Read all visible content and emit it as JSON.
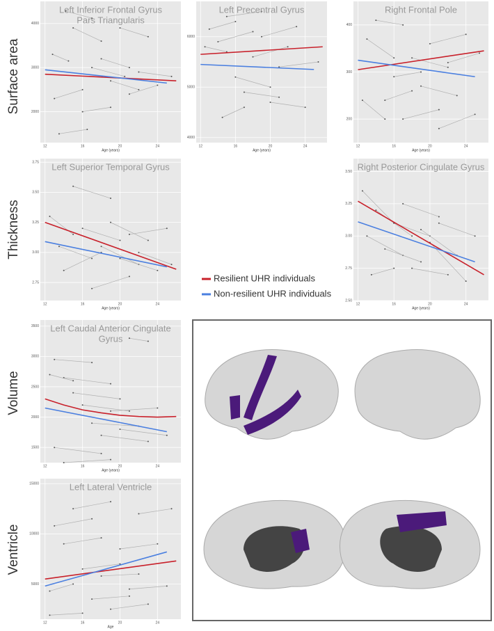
{
  "row_labels": [
    "Surface area",
    "Thickness",
    "Volume",
    "Ventricle"
  ],
  "chart_data": [
    {
      "type": "line",
      "title": [
        "Left Inferior Frontal Gyrus",
        "Pars Triangularis"
      ],
      "x_label": "Age (years)",
      "xlim": [
        11.5,
        26.5
      ],
      "xticks": [
        12,
        16,
        20,
        24
      ],
      "ylim": [
        1300,
        4500
      ],
      "yticks": [
        2000,
        3000,
        4000
      ],
      "grid": true,
      "trajectories": {
        "x": [
          [
            12.8,
            14.5
          ],
          [
            14.2,
            17
          ],
          [
            15,
            18
          ],
          [
            13,
            16
          ],
          [
            16,
            19
          ],
          [
            17,
            20.5
          ],
          [
            19,
            22
          ],
          [
            20,
            23
          ],
          [
            21,
            24
          ],
          [
            22,
            25.5
          ],
          [
            13.5,
            16.5
          ],
          [
            18,
            21
          ]
        ],
        "y": [
          [
            3300,
            3150
          ],
          [
            4280,
            4120
          ],
          [
            3900,
            3600
          ],
          [
            2300,
            2500
          ],
          [
            2000,
            2100
          ],
          [
            3000,
            2800
          ],
          [
            2700,
            2500
          ],
          [
            3900,
            3700
          ],
          [
            2400,
            2600
          ],
          [
            2900,
            2800
          ],
          [
            1500,
            1600
          ],
          [
            3200,
            3000
          ]
        ]
      },
      "series": [
        {
          "name": "Resilient UHR individuals",
          "color": "#c8202a",
          "x": [
            12,
            26
          ],
          "values": [
            2850,
            2700
          ]
        },
        {
          "name": "Non-resilient UHR individuals",
          "color": "#4a7fe0",
          "x": [
            12,
            25
          ],
          "values": [
            2950,
            2650
          ]
        }
      ]
    },
    {
      "type": "line",
      "title": "Left Precentral Gyrus",
      "x_label": "Age (years)",
      "xlim": [
        11.5,
        26.5
      ],
      "xticks": [
        12,
        16,
        20,
        24
      ],
      "ylim": [
        3900,
        6700
      ],
      "yticks": [
        4000,
        5000,
        6000
      ],
      "grid": true,
      "trajectories": {
        "x": [
          [
            13,
            16
          ],
          [
            14,
            18
          ],
          [
            15,
            19
          ],
          [
            16,
            20
          ],
          [
            17,
            21
          ],
          [
            18,
            22
          ],
          [
            19,
            23
          ],
          [
            20,
            24
          ],
          [
            14.5,
            17
          ],
          [
            21,
            25.5
          ],
          [
            12.5,
            15
          ]
        ],
        "y": [
          [
            6150,
            6300
          ],
          [
            5900,
            6100
          ],
          [
            6400,
            6500
          ],
          [
            5200,
            5000
          ],
          [
            4900,
            4800
          ],
          [
            5600,
            5800
          ],
          [
            6000,
            6200
          ],
          [
            4700,
            4600
          ],
          [
            4400,
            4600
          ],
          [
            5400,
            5500
          ],
          [
            5800,
            5700
          ]
        ]
      },
      "series": [
        {
          "name": "Resilient UHR individuals",
          "color": "#c8202a",
          "x": [
            12,
            26
          ],
          "values": [
            5650,
            5800
          ]
        },
        {
          "name": "Non-resilient UHR individuals",
          "color": "#4a7fe0",
          "x": [
            12,
            25
          ],
          "values": [
            5450,
            5350
          ]
        }
      ]
    },
    {
      "type": "line",
      "title": "Right Frontal Pole",
      "x_label": "Age (years)",
      "xlim": [
        11.5,
        26.5
      ],
      "xticks": [
        12,
        16,
        20,
        24
      ],
      "ylim": [
        150,
        450
      ],
      "yticks": [
        200,
        300,
        400
      ],
      "grid": true,
      "trajectories": {
        "x": [
          [
            13,
            16
          ],
          [
            14,
            17
          ],
          [
            15,
            18
          ],
          [
            16,
            19
          ],
          [
            17,
            21
          ],
          [
            18,
            22
          ],
          [
            19,
            23
          ],
          [
            20,
            24
          ],
          [
            12.5,
            15
          ],
          [
            21,
            25
          ],
          [
            22,
            25.5
          ]
        ],
        "y": [
          [
            370,
            330
          ],
          [
            410,
            400
          ],
          [
            240,
            260
          ],
          [
            290,
            300
          ],
          [
            200,
            220
          ],
          [
            330,
            310
          ],
          [
            270,
            250
          ],
          [
            360,
            380
          ],
          [
            240,
            200
          ],
          [
            180,
            210
          ],
          [
            320,
            340
          ]
        ]
      },
      "series": [
        {
          "name": "Resilient UHR individuals",
          "color": "#c8202a",
          "x": [
            12,
            26
          ],
          "values": [
            305,
            345
          ]
        },
        {
          "name": "Non-resilient UHR individuals",
          "color": "#4a7fe0",
          "x": [
            12,
            25
          ],
          "values": [
            325,
            290
          ]
        }
      ]
    },
    {
      "type": "line",
      "title": "Left Superior Temporal Gyrus",
      "x_label": "Age (years)",
      "xlim": [
        11.5,
        26.5
      ],
      "xticks": [
        12,
        16,
        20,
        24
      ],
      "ylim": [
        2.6,
        3.78
      ],
      "yticks": [
        {
          "value": 2.75,
          "label": "2.75"
        },
        {
          "value": 3,
          "label": "3.00"
        },
        {
          "value": 3.25,
          "label": "3.25"
        },
        {
          "value": 3.5,
          "label": "3.50"
        },
        {
          "value": 3.75,
          "label": "3.75"
        }
      ],
      "grid": true,
      "trajectories": {
        "x": [
          [
            12.5,
            15
          ],
          [
            13.5,
            17
          ],
          [
            14,
            18
          ],
          [
            15,
            19
          ],
          [
            16,
            20
          ],
          [
            17,
            21
          ],
          [
            18,
            22
          ],
          [
            19,
            23
          ],
          [
            20,
            24
          ],
          [
            21,
            25
          ],
          [
            22,
            25.5
          ]
        ],
        "y": [
          [
            3.3,
            3.15
          ],
          [
            3.05,
            2.95
          ],
          [
            2.85,
            3.0
          ],
          [
            3.55,
            3.45
          ],
          [
            3.2,
            3.1
          ],
          [
            2.7,
            2.8
          ],
          [
            3.05,
            2.9
          ],
          [
            3.25,
            3.1
          ],
          [
            2.95,
            2.85
          ],
          [
            3.15,
            3.2
          ],
          [
            3.0,
            2.9
          ]
        ]
      },
      "series": [
        {
          "name": "Resilient UHR individuals",
          "color": "#c8202a",
          "x": [
            12,
            26
          ],
          "values": [
            3.25,
            2.86
          ]
        },
        {
          "name": "Non-resilient UHR individuals",
          "color": "#4a7fe0",
          "x": [
            12,
            25
          ],
          "values": [
            3.09,
            2.88
          ]
        }
      ]
    },
    {
      "type": "line",
      "title": "Right Posterior Cingulate Gyrus",
      "x_label": "Age (years)",
      "xlim": [
        11.5,
        26.5
      ],
      "xticks": [
        12,
        16,
        20,
        24
      ],
      "ylim": [
        2.5,
        3.6
      ],
      "yticks": [
        {
          "value": 2.5,
          "label": "2.50"
        },
        {
          "value": 2.75,
          "label": "2.75"
        },
        {
          "value": 3,
          "label": "3.00"
        },
        {
          "value": 3.25,
          "label": "3.25"
        },
        {
          "value": 3.5,
          "label": "3.50"
        }
      ],
      "grid": true,
      "trajectories": {
        "x": [
          [
            12.5,
            16
          ],
          [
            13,
            17
          ],
          [
            14,
            18
          ],
          [
            15,
            19
          ],
          [
            16,
            20
          ],
          [
            17,
            21
          ],
          [
            18,
            22
          ],
          [
            19,
            23
          ],
          [
            20,
            24
          ],
          [
            21,
            25
          ],
          [
            13.5,
            16
          ]
        ],
        "y": [
          [
            3.35,
            3.1
          ],
          [
            3.0,
            2.85
          ],
          [
            3.2,
            3.0
          ],
          [
            2.9,
            2.8
          ],
          [
            3.1,
            3.0
          ],
          [
            3.25,
            3.15
          ],
          [
            2.75,
            2.7
          ],
          [
            3.05,
            2.85
          ],
          [
            2.95,
            2.65
          ],
          [
            3.1,
            3.0
          ],
          [
            2.7,
            2.75
          ]
        ]
      },
      "series": [
        {
          "name": "Resilient UHR individuals",
          "color": "#c8202a",
          "x": [
            12,
            26
          ],
          "values": [
            3.27,
            2.7
          ]
        },
        {
          "name": "Non-resilient UHR individuals",
          "color": "#4a7fe0",
          "x": [
            12,
            25
          ],
          "values": [
            3.11,
            2.8
          ]
        }
      ]
    },
    {
      "type": "line",
      "title": [
        "Left Caudal Anterior Cingulate",
        "Gyrus"
      ],
      "x_label": "Age (years)",
      "xlim": [
        11.5,
        26.5
      ],
      "xticks": [
        12,
        16,
        20,
        24
      ],
      "ylim": [
        1250,
        3600
      ],
      "yticks": [
        1500,
        2000,
        2500,
        3000,
        3500
      ],
      "grid": true,
      "trajectories": {
        "x": [
          [
            13,
            17
          ],
          [
            14,
            19
          ],
          [
            15,
            20
          ],
          [
            16,
            21
          ],
          [
            12.5,
            15
          ],
          [
            17,
            22
          ],
          [
            18,
            23
          ],
          [
            13,
            18
          ],
          [
            19,
            24
          ],
          [
            20,
            25
          ],
          [
            21,
            23
          ],
          [
            14,
            19
          ]
        ],
        "y": [
          [
            2950,
            2900
          ],
          [
            2650,
            2550
          ],
          [
            2400,
            2300
          ],
          [
            2200,
            2100
          ],
          [
            2700,
            2600
          ],
          [
            1900,
            1850
          ],
          [
            1700,
            1600
          ],
          [
            1500,
            1400
          ],
          [
            2100,
            2150
          ],
          [
            1800,
            1700
          ],
          [
            3300,
            3250
          ],
          [
            1250,
            1300
          ]
        ]
      },
      "series": [
        {
          "name": "Resilient UHR individuals",
          "color": "#c8202a",
          "x": [
            12,
            14,
            16,
            18,
            20,
            22,
            24,
            26
          ],
          "values": [
            2300,
            2200,
            2120,
            2070,
            2030,
            2010,
            2000,
            2010
          ]
        },
        {
          "name": "Non-resilient UHR individuals",
          "color": "#4a7fe0",
          "x": [
            12,
            25
          ],
          "values": [
            2150,
            1760
          ]
        }
      ]
    },
    {
      "type": "line",
      "title": "Left Lateral Ventricle",
      "x_label": "Age",
      "xlim": [
        11.5,
        26.5
      ],
      "xticks": [
        12,
        16,
        20,
        24
      ],
      "ylim": [
        1500,
        15500
      ],
      "yticks": [
        5000,
        10000,
        15000
      ],
      "grid": true,
      "trajectories": {
        "x": [
          [
            12.5,
            15
          ],
          [
            13,
            17
          ],
          [
            14,
            18
          ],
          [
            15,
            19
          ],
          [
            16,
            20
          ],
          [
            17,
            21
          ],
          [
            18,
            22
          ],
          [
            19,
            23
          ],
          [
            20,
            24
          ],
          [
            21,
            25
          ],
          [
            22,
            25.5
          ],
          [
            12.5,
            16
          ]
        ],
        "y": [
          [
            4300,
            5000
          ],
          [
            10800,
            11500
          ],
          [
            9000,
            9600
          ],
          [
            12500,
            13200
          ],
          [
            6500,
            7000
          ],
          [
            3500,
            3800
          ],
          [
            5800,
            6000
          ],
          [
            2500,
            3000
          ],
          [
            8500,
            9000
          ],
          [
            4500,
            4800
          ],
          [
            12000,
            12500
          ],
          [
            1900,
            2100
          ]
        ]
      },
      "series": [
        {
          "name": "Resilient UHR individuals",
          "color": "#c8202a",
          "x": [
            12,
            26
          ],
          "values": [
            5500,
            7300
          ]
        },
        {
          "name": "Non-resilient UHR individuals",
          "color": "#4a7fe0",
          "x": [
            12,
            25
          ],
          "values": [
            4800,
            8200
          ]
        }
      ]
    }
  ]
}
